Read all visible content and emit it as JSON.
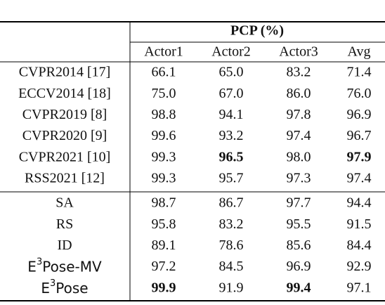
{
  "table": {
    "header": "PCP (%)",
    "columns": [
      "Actor1",
      "Actor2",
      "Actor3",
      "Avg"
    ],
    "groups": [
      [
        {
          "method": "CVPR2014 [17]",
          "values": [
            "66.1",
            "65.0",
            "83.2",
            "71.4"
          ]
        },
        {
          "method": "ECCV2014 [18]",
          "values": [
            "75.0",
            "67.0",
            "86.0",
            "76.0"
          ]
        },
        {
          "method": "CVPR2019 [8]",
          "values": [
            "98.8",
            "94.1",
            "97.8",
            "96.9"
          ]
        },
        {
          "method": "CVPR2020 [9]",
          "values": [
            "99.6",
            "93.2",
            "97.4",
            "96.7"
          ]
        },
        {
          "method": "CVPR2021 [10]",
          "values": [
            "99.3",
            "96.5",
            "98.0",
            "97.9"
          ],
          "bold": [
            1,
            3
          ]
        },
        {
          "method": "RSS2021 [12]",
          "values": [
            "99.3",
            "95.7",
            "97.3",
            "97.4"
          ]
        }
      ],
      [
        {
          "method": "SA",
          "values": [
            "98.7",
            "86.7",
            "97.7",
            "94.4"
          ]
        },
        {
          "method": "RS",
          "values": [
            "95.8",
            "83.2",
            "95.5",
            "91.5"
          ]
        },
        {
          "method": "ID",
          "values": [
            "89.1",
            "78.6",
            "85.6",
            "84.4"
          ]
        },
        {
          "method": [
            "E",
            "3",
            "Pose-MV"
          ],
          "values": [
            "97.2",
            "84.5",
            "96.9",
            "92.9"
          ]
        },
        {
          "method": [
            "E",
            "3",
            "Pose"
          ],
          "values": [
            "99.9",
            "91.9",
            "99.4",
            "97.1"
          ],
          "bold": [
            0,
            2
          ]
        }
      ]
    ]
  }
}
